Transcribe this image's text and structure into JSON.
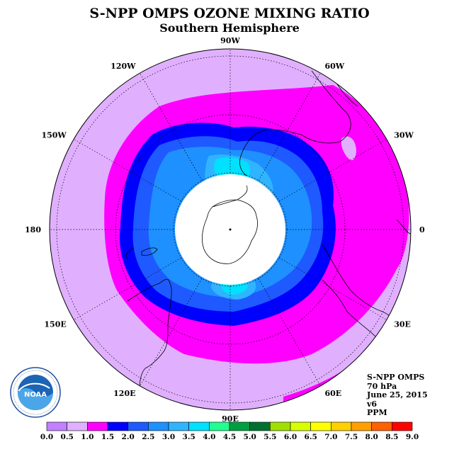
{
  "title": "S-NPP OMPS OZONE MIXING RATIO",
  "subtitle": "Southern Hemisphere",
  "longitude_labels": [
    {
      "text": "90W",
      "lon": -90
    },
    {
      "text": "60W",
      "lon": -60
    },
    {
      "text": "30W",
      "lon": -30
    },
    {
      "text": "0",
      "lon": 0
    },
    {
      "text": "30E",
      "lon": 30
    },
    {
      "text": "60E",
      "lon": 60
    },
    {
      "text": "90E",
      "lon": 90
    },
    {
      "text": "120E",
      "lon": 120
    },
    {
      "text": "150E",
      "lon": 150
    },
    {
      "text": "180",
      "lon": 180
    },
    {
      "text": "150W",
      "lon": -150
    },
    {
      "text": "120W",
      "lon": -120
    }
  ],
  "info": {
    "instrument": "S-NPP OMPS",
    "level": "70 hPa",
    "date": "June 25, 2015",
    "version": "v6",
    "units": "PPM"
  },
  "logo": {
    "text": "NOAA",
    "ring_text": "NATIONAL OCEANIC AND ATMOSPHERIC ADMINISTRATION · U.S. DEPARTMENT OF COMMERCE"
  },
  "colorbar": {
    "labels": [
      "0.0",
      "0.5",
      "1.0",
      "1.5",
      "2.0",
      "2.5",
      "3.0",
      "3.5",
      "4.0",
      "4.5",
      "5.0",
      "5.5",
      "6.0",
      "6.5",
      "7.0",
      "7.5",
      "8.0",
      "8.5",
      "9.0"
    ],
    "colors": [
      "#c080ff",
      "#e0b0ff",
      "#ff00ff",
      "#0000ff",
      "#1e5aff",
      "#1e90ff",
      "#30b4ff",
      "#00e0ff",
      "#20ff90",
      "#00a040",
      "#007030",
      "#a0e000",
      "#d8ff00",
      "#ffff00",
      "#ffd000",
      "#ffa000",
      "#ff6000",
      "#ff0000",
      "#8b5a2b"
    ]
  },
  "chart_data": {
    "type": "map",
    "projection": "south-polar-stereographic",
    "variable": "ozone mixing ratio",
    "units": "PPM",
    "pressure_level_hPa": 70,
    "contour_levels_ppm": [
      0.5,
      1.0,
      1.5,
      2.0,
      2.5,
      3.0,
      3.5
    ],
    "polar_no_data_region": true,
    "colors": {
      "background_disk": "#e0b0ff",
      "no_data": "#ffffff"
    }
  }
}
